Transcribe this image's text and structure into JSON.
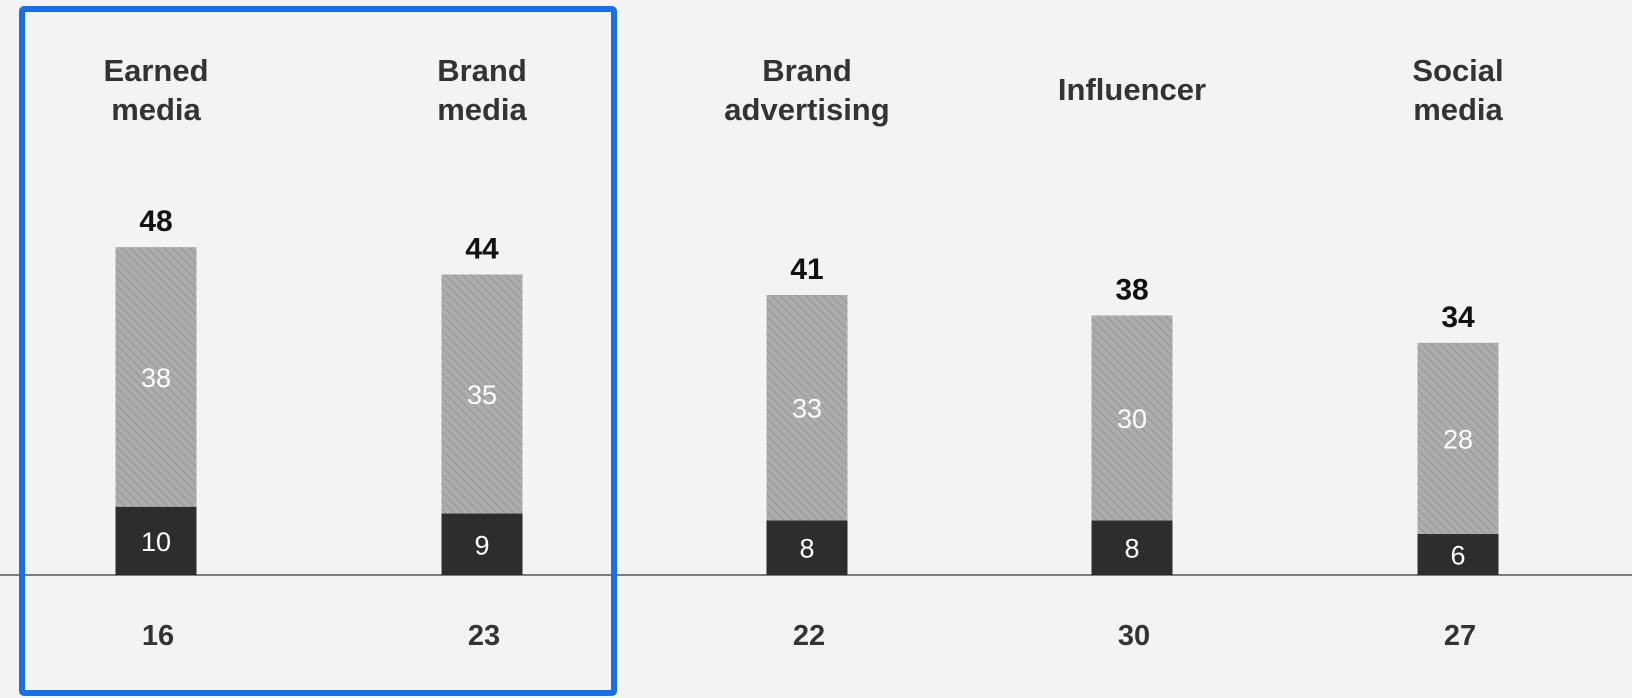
{
  "chart_data": {
    "type": "bar",
    "stacked": true,
    "categories": [
      "Earned\nmedia",
      "Brand\nmedia",
      "Brand\nadvertising",
      "Influencer",
      "Social\nmedia"
    ],
    "series": [
      {
        "values": [
          10,
          9,
          8,
          8,
          6
        ]
      },
      {
        "values": [
          38,
          35,
          33,
          30,
          28
        ]
      }
    ],
    "totals": [
      48,
      44,
      41,
      38,
      34
    ],
    "bottom_values": [
      16,
      23,
      22,
      30,
      27
    ],
    "highlighted_categories": [
      0,
      1
    ],
    "legend": "none",
    "grid": false,
    "ylim": [
      0,
      48
    ],
    "colors": {
      "background": "#f3f3f3",
      "bottom_segment": "#2c2d2c",
      "top_segment_base": "#adadad",
      "top_segment_stripe": "#969696",
      "highlight": "#1a6fe8",
      "category_text": "#333333",
      "total_text": "#111111",
      "segment_text": "#ffffff"
    }
  }
}
